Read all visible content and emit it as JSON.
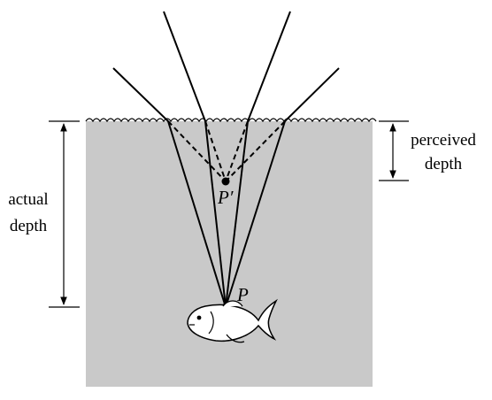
{
  "labels": {
    "actual_depth": [
      "actual",
      "depth"
    ],
    "perceived_depth": [
      "perceived",
      "depth"
    ]
  },
  "points": {
    "object": "P",
    "image": "P′"
  }
}
